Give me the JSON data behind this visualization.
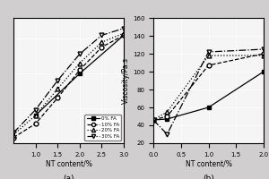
{
  "title_a": "(a)",
  "title_b": "(b)",
  "xlabel": "NT content/%",
  "ylabel_b": "Viscosity/Pa.s",
  "background": "#d0cece",
  "plot_bg": "#f5f5f5",
  "series_a": {
    "0% FA": {
      "x": [
        1.0,
        2.0,
        3.0
      ],
      "y": [
        0.4,
        1.0,
        1.55
      ]
    },
    "10% FA": {
      "x": [
        0.5,
        1.0,
        1.5,
        2.0,
        2.5,
        3.0
      ],
      "y": [
        0.08,
        0.28,
        0.65,
        1.05,
        1.38,
        1.55
      ]
    },
    "20% FA": {
      "x": [
        0.5,
        1.0,
        1.5,
        2.0,
        2.5,
        3.0
      ],
      "y": [
        0.12,
        0.4,
        0.78,
        1.15,
        1.45,
        1.58
      ]
    },
    "30% FA": {
      "x": [
        0.5,
        1.0,
        1.5,
        2.0,
        2.5,
        3.0
      ],
      "y": [
        0.15,
        0.48,
        0.9,
        1.28,
        1.55,
        1.65
      ]
    }
  },
  "series_b": {
    "0% FA": {
      "x": [
        0.0,
        0.25,
        1.0,
        2.0
      ],
      "y": [
        46,
        47,
        60,
        100
      ]
    },
    "10% FA": {
      "x": [
        0.0,
        0.25,
        1.0,
        2.0
      ],
      "y": [
        46,
        50,
        107,
        120
      ]
    },
    "20% FA": {
      "x": [
        0.0,
        0.25,
        1.0,
        2.0
      ],
      "y": [
        46,
        55,
        118,
        118
      ]
    },
    "30% FA": {
      "x": [
        0.0,
        0.25,
        1.0,
        2.0
      ],
      "y": [
        46,
        30,
        122,
        125
      ]
    }
  },
  "xlim_a": [
    0.5,
    3.0
  ],
  "ylim_a": [
    0.0,
    1.8
  ],
  "xticks_a": [
    1.0,
    1.5,
    2.0,
    2.5,
    3.0
  ],
  "xlim_b": [
    0.0,
    2.0
  ],
  "ylim_b": [
    20,
    160
  ],
  "yticks_b": [
    20,
    40,
    60,
    80,
    100,
    120,
    140,
    160
  ],
  "xticks_b": [
    0.0,
    0.5,
    1.0,
    1.5,
    2.0
  ],
  "legend_labels": [
    "0% FA",
    "10% FA",
    "20% FA",
    "30% FA"
  ],
  "styles": {
    "0% FA": {
      "color": "black",
      "linestyle": "-",
      "marker": "s",
      "markersize": 3.5
    },
    "10% FA": {
      "color": "black",
      "linestyle": "--",
      "marker": "o",
      "markersize": 3.5
    },
    "20% FA": {
      "color": "black",
      "linestyle": ":",
      "marker": "^",
      "markersize": 3.5
    },
    "30% FA": {
      "color": "black",
      "linestyle": "-.",
      "marker": "v",
      "markersize": 3.5
    }
  }
}
